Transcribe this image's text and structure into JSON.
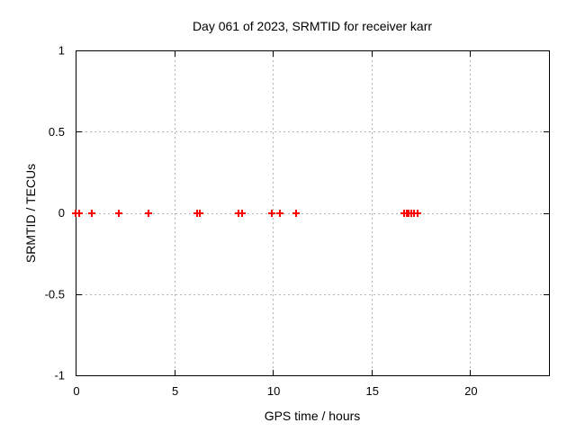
{
  "page": {
    "background": "#ffffff"
  },
  "chart_data": {
    "type": "scatter",
    "title": "Day 061 of 2023, SRMTID for receiver karr",
    "xlabel": "GPS time / hours",
    "ylabel": "SRMTID / TECUs",
    "xlim": [
      0,
      24
    ],
    "ylim": [
      -1,
      1
    ],
    "x_ticks": [
      {
        "value": 0,
        "label": "0"
      },
      {
        "value": 5,
        "label": "5"
      },
      {
        "value": 10,
        "label": "10"
      },
      {
        "value": 15,
        "label": "15"
      },
      {
        "value": 20,
        "label": "20"
      }
    ],
    "y_ticks": [
      {
        "value": -1,
        "label": "-1"
      },
      {
        "value": -0.5,
        "label": "-0.5"
      },
      {
        "value": 0,
        "label": "0"
      },
      {
        "value": 0.5,
        "label": "0.5"
      },
      {
        "value": 1,
        "label": "1"
      }
    ],
    "grid": {
      "show": true,
      "color": "#b4b4b4",
      "dash": "2,3"
    },
    "axis_color": "#000000",
    "legend_position": "none",
    "series": [
      {
        "name": "SRMTID",
        "marker": {
          "shape": "plus",
          "color": "#ff0000",
          "size": 9,
          "stroke_width": 2
        },
        "points": [
          {
            "x": 0.0,
            "y": 0
          },
          {
            "x": 0.2,
            "y": 0
          },
          {
            "x": 0.8,
            "y": 0
          },
          {
            "x": 2.2,
            "y": 0
          },
          {
            "x": 3.7,
            "y": 0
          },
          {
            "x": 6.15,
            "y": 0
          },
          {
            "x": 6.3,
            "y": 0
          },
          {
            "x": 8.25,
            "y": 0
          },
          {
            "x": 8.45,
            "y": 0
          },
          {
            "x": 9.95,
            "y": 0
          },
          {
            "x": 10.35,
            "y": 0
          },
          {
            "x": 11.2,
            "y": 0
          },
          {
            "x": 16.65,
            "y": 0
          },
          {
            "x": 16.78,
            "y": 0
          },
          {
            "x": 16.9,
            "y": 0
          },
          {
            "x": 17.02,
            "y": 0
          },
          {
            "x": 17.15,
            "y": 0
          },
          {
            "x": 17.35,
            "y": 0
          }
        ]
      }
    ]
  }
}
